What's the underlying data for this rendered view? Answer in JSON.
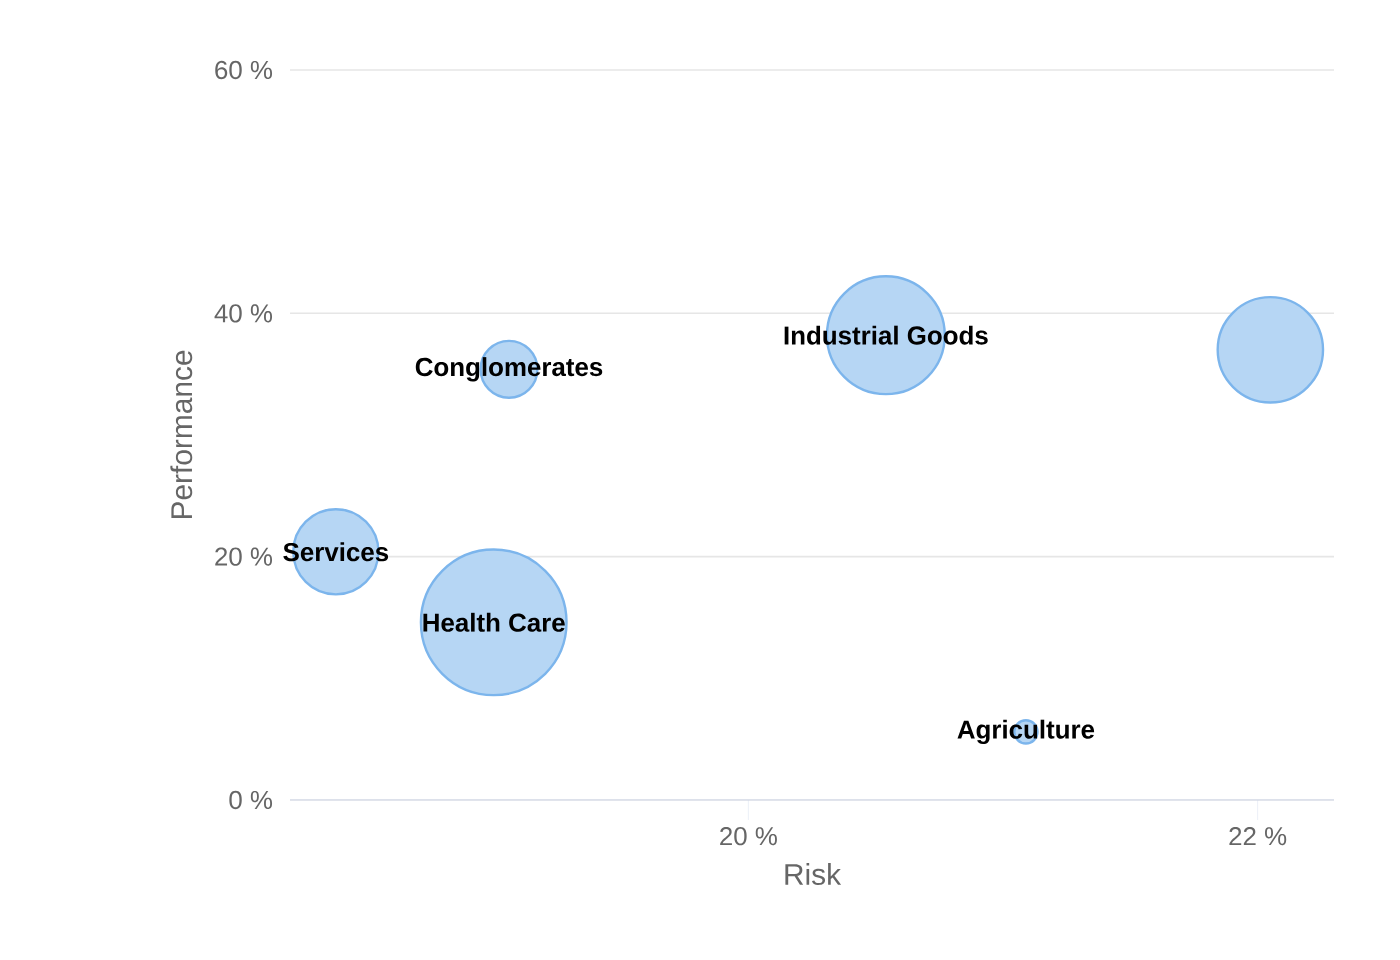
{
  "chart_data": {
    "type": "bubble",
    "xlabel": "Risk",
    "ylabel": "Performance",
    "x": [
      18.38,
      19.0,
      19.06,
      20.54,
      22.05,
      21.09
    ],
    "values": [
      20.4,
      14.6,
      35.4,
      38.2,
      37.0,
      5.6
    ],
    "sizes": [
      0.35,
      1,
      0.16,
      0.66,
      0.53,
      0.03
    ],
    "color": "#7cb5ec",
    "xlim": [
      18.2,
      22.3
    ],
    "xticks": [
      {
        "value": 20,
        "label": "20 %"
      },
      {
        "value": 22,
        "label": "22 %"
      }
    ],
    "ylim": [
      0,
      60
    ],
    "yticks": [
      {
        "value": 0,
        "label": "0 %"
      },
      {
        "value": 20,
        "label": "20 %"
      },
      {
        "value": 40,
        "label": "40 %"
      },
      {
        "value": 60,
        "label": "60 %"
      }
    ],
    "grid": "y",
    "annotations": [
      {
        "text": "Services",
        "x": 18.38,
        "y": 20.4
      },
      {
        "text": "Health Care",
        "x": 19.0,
        "y": 14.6
      },
      {
        "text": "Conglomerates",
        "x": 19.06,
        "y": 35.4
      },
      {
        "text": "Industrial Goods",
        "x": 20.54,
        "y": 38.2
      },
      {
        "text": "Agriculture",
        "x": 21.09,
        "y": 5.6
      }
    ]
  }
}
